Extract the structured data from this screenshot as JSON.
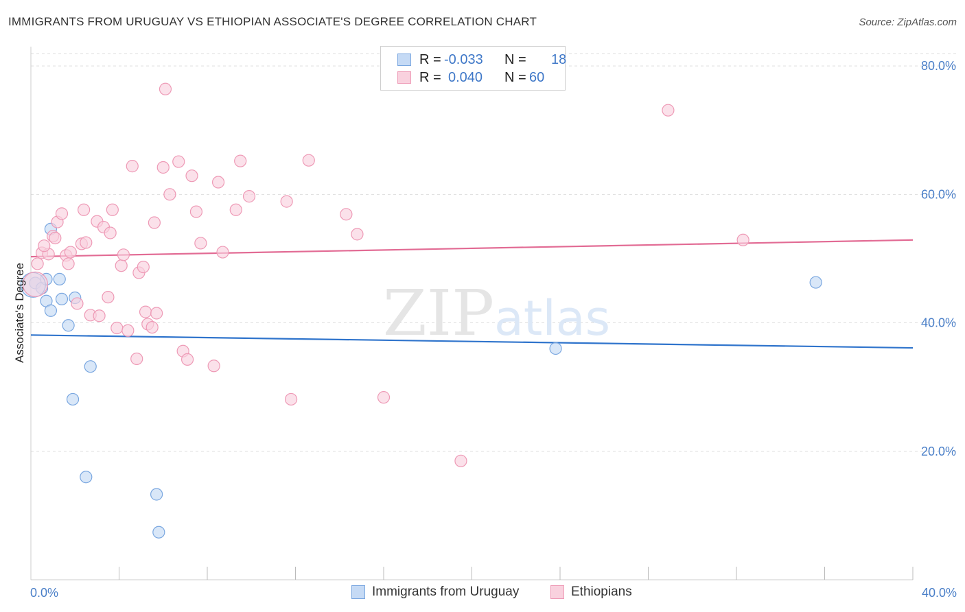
{
  "title": "IMMIGRANTS FROM URUGUAY VS ETHIOPIAN ASSOCIATE'S DEGREE CORRELATION CHART",
  "source": "Source: ZipAtlas.com",
  "watermark": {
    "zip": "ZIP",
    "atlas": "atlas"
  },
  "colors": {
    "blue_fill": "#c5daf5",
    "blue_stroke": "#7aa7e0",
    "blue_line": "#2f74cc",
    "pink_fill": "#f9d1de",
    "pink_stroke": "#ee9ab6",
    "pink_line": "#e26b94",
    "tick_text": "#4a7fc8",
    "grid": "#dddddd"
  },
  "legend": {
    "rows": [
      {
        "r_label": "R =",
        "r_value": "-0.033",
        "n_label": "N =",
        "n_value": "18"
      },
      {
        "r_label": "R =",
        "r_value": "0.040",
        "n_label": "N =",
        "n_value": "60"
      }
    ]
  },
  "bottom_legend": [
    "Immigrants from Uruguay",
    "Ethiopians"
  ],
  "chart_data": {
    "type": "scatter",
    "title": "IMMIGRANTS FROM URUGUAY VS ETHIOPIAN ASSOCIATE'S DEGREE CORRELATION CHART",
    "xlabel": "",
    "ylabel": "Associate's Degree",
    "xlim": [
      0,
      40
    ],
    "ylim": [
      0,
      83
    ],
    "x_tick_labels": [
      "0.0%",
      "40.0%"
    ],
    "y_ticks": [
      20,
      40,
      60,
      80
    ],
    "y_tick_labels": [
      "20.0%",
      "40.0%",
      "60.0%",
      "80.0%"
    ],
    "grid": true,
    "series": [
      {
        "name": "Immigrants from Uruguay",
        "color": "blue",
        "trend": {
          "x": [
            0,
            40
          ],
          "y": [
            38.1,
            36.1
          ]
        },
        "points": [
          [
            0.2,
            46.2
          ],
          [
            0.5,
            45.4
          ],
          [
            0.7,
            46.8
          ],
          [
            0.9,
            54.6
          ],
          [
            0.7,
            43.4
          ],
          [
            1.3,
            46.8
          ],
          [
            1.4,
            43.7
          ],
          [
            2.0,
            43.9
          ],
          [
            0.9,
            41.9
          ],
          [
            1.7,
            39.6
          ],
          [
            2.7,
            33.2
          ],
          [
            1.9,
            28.1
          ],
          [
            2.5,
            16.0
          ],
          [
            5.7,
            13.3
          ],
          [
            5.8,
            7.4
          ],
          [
            23.8,
            36.0
          ],
          [
            35.6,
            46.3
          ],
          [
            0.1,
            45.9
          ]
        ]
      },
      {
        "name": "Ethiopians",
        "color": "pink",
        "trend": {
          "x": [
            0,
            40
          ],
          "y": [
            50.3,
            52.9
          ]
        },
        "points": [
          [
            0.3,
            49.2
          ],
          [
            0.5,
            50.9
          ],
          [
            0.8,
            50.7
          ],
          [
            0.6,
            52.0
          ],
          [
            1.0,
            53.5
          ],
          [
            1.1,
            53.2
          ],
          [
            1.2,
            55.7
          ],
          [
            1.4,
            57.0
          ],
          [
            1.6,
            50.5
          ],
          [
            1.7,
            49.2
          ],
          [
            1.8,
            51.0
          ],
          [
            2.1,
            43.0
          ],
          [
            2.3,
            52.3
          ],
          [
            2.5,
            52.5
          ],
          [
            2.4,
            57.6
          ],
          [
            2.7,
            41.2
          ],
          [
            3.0,
            55.8
          ],
          [
            3.1,
            41.1
          ],
          [
            3.3,
            54.9
          ],
          [
            3.5,
            44.0
          ],
          [
            3.6,
            54.0
          ],
          [
            3.7,
            57.6
          ],
          [
            3.9,
            39.2
          ],
          [
            4.1,
            48.9
          ],
          [
            4.2,
            50.6
          ],
          [
            4.4,
            38.8
          ],
          [
            4.6,
            64.4
          ],
          [
            4.8,
            34.4
          ],
          [
            4.9,
            47.8
          ],
          [
            5.1,
            48.7
          ],
          [
            5.2,
            41.7
          ],
          [
            5.3,
            39.8
          ],
          [
            5.5,
            39.3
          ],
          [
            5.6,
            55.6
          ],
          [
            5.7,
            41.5
          ],
          [
            6.0,
            64.2
          ],
          [
            6.1,
            76.4
          ],
          [
            6.3,
            60.0
          ],
          [
            6.7,
            65.1
          ],
          [
            6.9,
            35.6
          ],
          [
            7.1,
            34.3
          ],
          [
            7.3,
            62.9
          ],
          [
            7.5,
            57.3
          ],
          [
            7.7,
            52.4
          ],
          [
            8.3,
            33.3
          ],
          [
            8.5,
            61.9
          ],
          [
            8.7,
            51.0
          ],
          [
            9.3,
            57.6
          ],
          [
            9.5,
            65.2
          ],
          [
            9.9,
            59.7
          ],
          [
            11.6,
            58.9
          ],
          [
            11.8,
            28.1
          ],
          [
            12.6,
            65.3
          ],
          [
            14.3,
            56.9
          ],
          [
            14.8,
            53.8
          ],
          [
            16.0,
            28.4
          ],
          [
            19.5,
            18.5
          ],
          [
            28.9,
            73.1
          ],
          [
            32.3,
            52.9
          ],
          [
            0.2,
            46.0
          ]
        ]
      }
    ]
  }
}
